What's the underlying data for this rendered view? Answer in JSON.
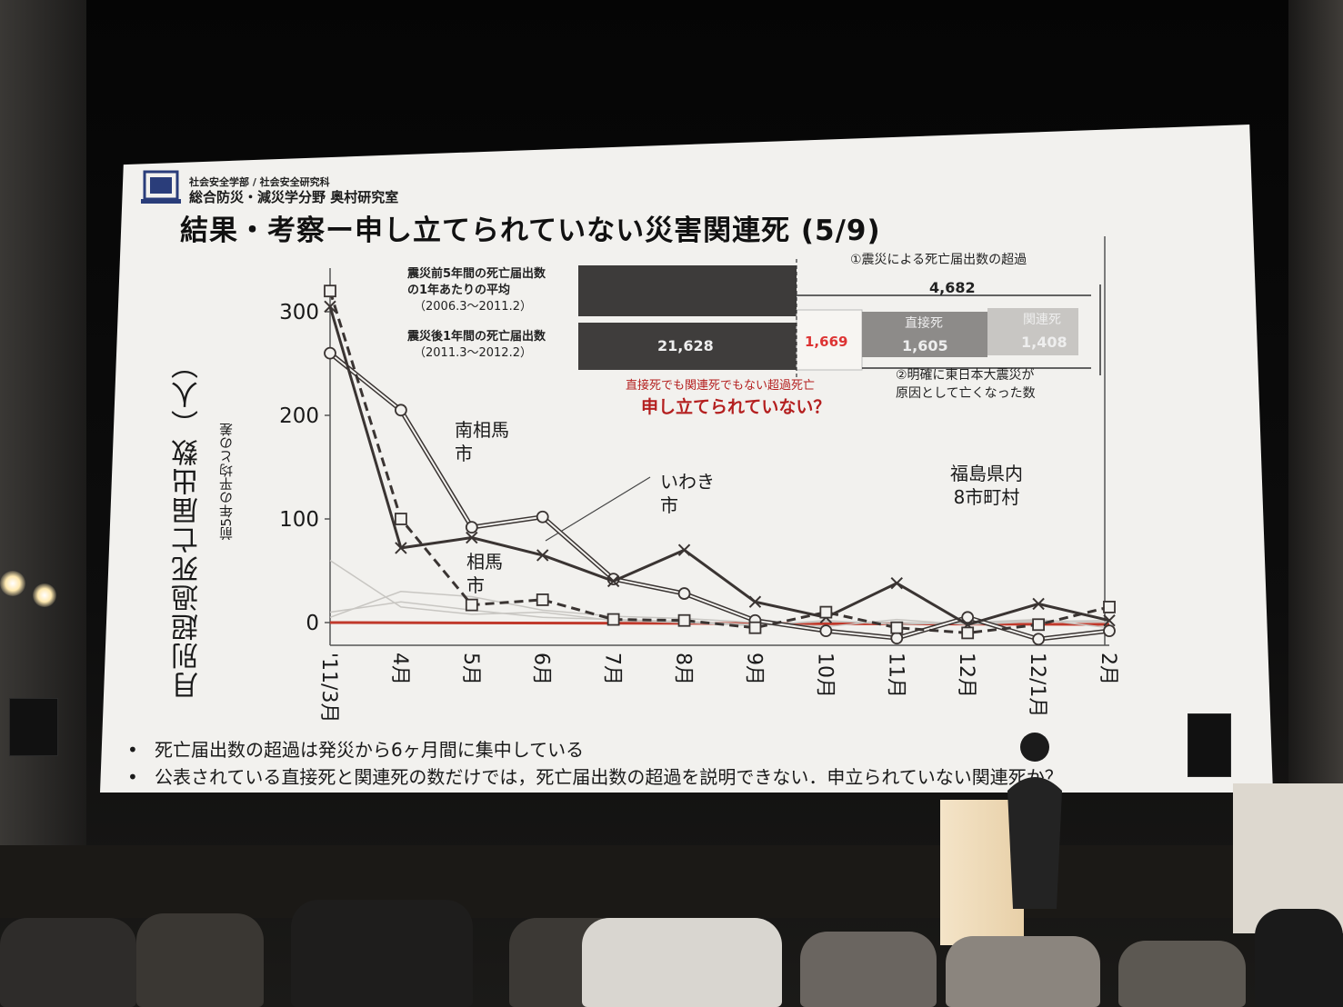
{
  "header": {
    "dept": "社会安全学部 / 社会安全研究科",
    "lab": "総合防災・減災学分野 奥村研究室"
  },
  "slide_title": "結果・考察ー申し立てられていない災害関連死 (5/9)",
  "yaxis": {
    "label": "月別超過死亡届出数（人）",
    "sublabel": "前5年の平均との差",
    "ticks": [
      "300",
      "200",
      "100",
      "0"
    ]
  },
  "months": [
    "'11/3月",
    "4月",
    "5月",
    "6月",
    "7月",
    "8月",
    "9月",
    "10月",
    "11月",
    "12月",
    "12/1月",
    "2月"
  ],
  "labels": {
    "minamisoma": "南相馬\n市",
    "iwaki": "いわき\n市",
    "soma": "相馬\n市",
    "fukushima": "福島県内\n8市町村"
  },
  "box": {
    "pre_label_1": "震災前5年間の死亡届出数",
    "pre_label_2": "の1年あたりの平均",
    "pre_label_3": "（2006.3〜2011.2）",
    "post_label_1": "震災後1年間の死亡届出数",
    "post_label_2": "（2011.3〜2012.2）",
    "excess_label": "①震災による死亡届出数の超過",
    "excess_value": "4,682",
    "bar_value_1": "21,628",
    "bar_value_2": "1,669",
    "direct_label": "直接死",
    "direct_value": "1,605",
    "related_label": "関連死",
    "related_value": "1,408",
    "neither_label": "直接死でも関連死でもない超過死亡",
    "unclaimed": "申し立てられていない？",
    "clear_cause_1": "②明確に東日本大震災が",
    "clear_cause_2": "原因として亡くなった数"
  },
  "bullets": [
    "死亡届出数の超過は発災から6ヶ月間に集中している",
    "公表されている直接死と関連死の数だけでは，死亡届出数の超過を説明できない．申立られていない関連死か？"
  ],
  "colors": {
    "screen": "#f2f1ee",
    "line_dark": "#3a3432",
    "accent_red": "#b41f1f",
    "zero_line": "#c0392b"
  },
  "chart_data": {
    "type": "line",
    "categories": [
      "'11/3月",
      "4月",
      "5月",
      "6月",
      "7月",
      "8月",
      "9月",
      "10月",
      "11月",
      "12月",
      "12/1月",
      "2月"
    ],
    "ylim": [
      -20,
      330
    ],
    "series": [
      {
        "name": "南相馬市",
        "marker": "circle-double",
        "values": [
          260,
          205,
          92,
          102,
          42,
          28,
          2,
          -8,
          -15,
          5,
          -16,
          -8
        ]
      },
      {
        "name": "いわき市",
        "marker": "x",
        "values": [
          305,
          72,
          82,
          65,
          40,
          70,
          20,
          5,
          38,
          -2,
          18,
          2
        ]
      },
      {
        "name": "相馬市",
        "marker": "square-dashed",
        "values": [
          320,
          100,
          17,
          22,
          3,
          2,
          -5,
          10,
          -5,
          -10,
          -2,
          15
        ]
      }
    ]
  }
}
